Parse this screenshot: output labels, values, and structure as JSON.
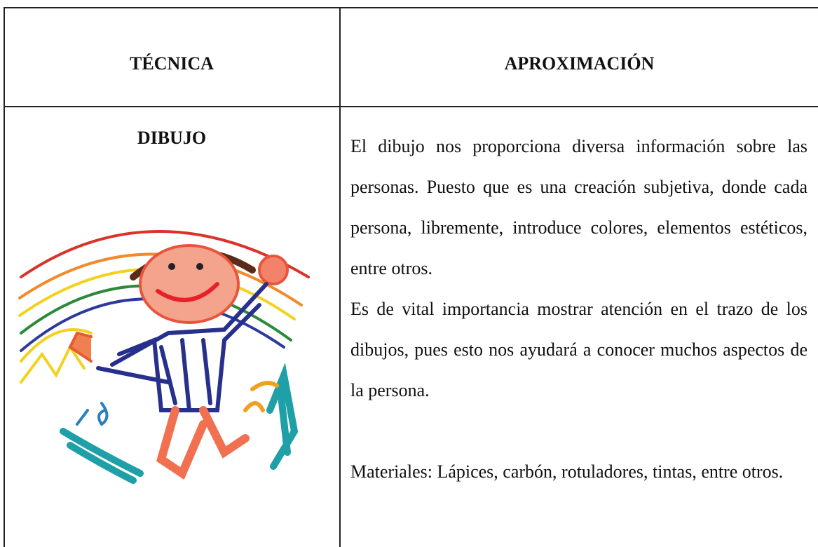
{
  "table": {
    "header": [
      "TÉCNICA",
      "APROXIMACIÓN"
    ],
    "technique": "DIBUJO",
    "paragraphs": [
      "El dibujo nos proporciona diversa información sobre las personas. Puesto que es una creación subjetiva, donde cada persona, libremente, introduce colores, elementos estéticos, entre otros.",
      "Es de vital importancia mostrar atención en el trazo de los dibujos, pues esto nos ayudará a conocer muchos aspectos de la persona.",
      "Materiales: Lápices, carbón, rotuladores, tintas, entre otros."
    ]
  }
}
